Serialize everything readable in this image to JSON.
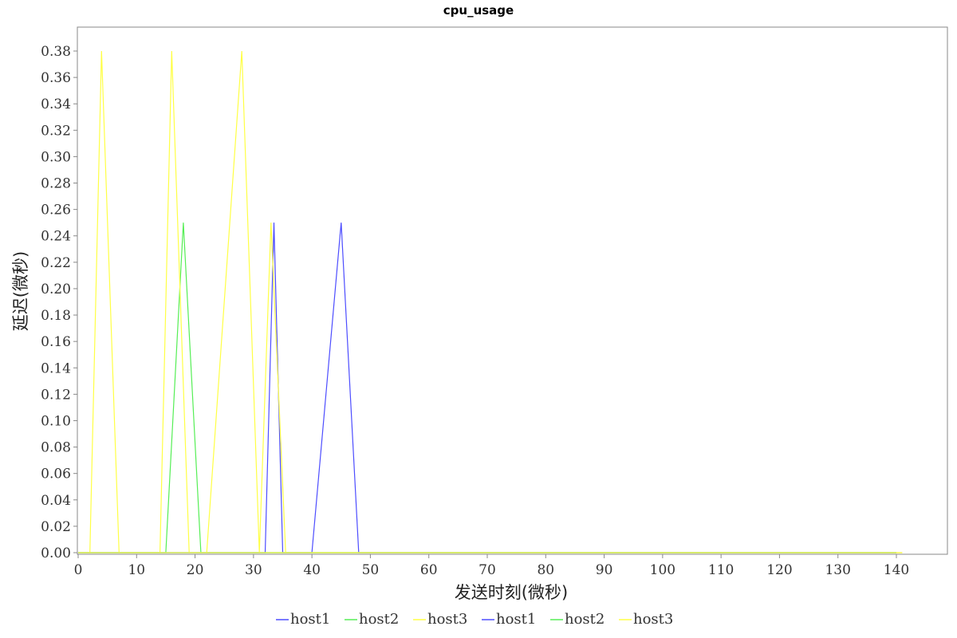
{
  "chart_data": {
    "type": "line",
    "title": "cpu_usage",
    "xlabel": "发送时刻(微秒)",
    "ylabel": "延迟(微秒)",
    "xlim": [
      0,
      148
    ],
    "ylim": [
      0,
      0.4
    ],
    "xticks": [
      0,
      10,
      20,
      30,
      40,
      50,
      60,
      70,
      80,
      90,
      100,
      110,
      120,
      130,
      140
    ],
    "yticks": [
      0.0,
      0.02,
      0.04,
      0.06,
      0.08,
      0.1,
      0.12,
      0.14,
      0.16,
      0.18,
      0.2,
      0.22,
      0.24,
      0.26,
      0.28,
      0.3,
      0.32,
      0.34,
      0.36,
      0.38
    ],
    "ytick_labels": [
      "0.00",
      "0.02",
      "0.04",
      "0.06",
      "0.08",
      "0.10",
      "0.12",
      "0.14",
      "0.16",
      "0.18",
      "0.20",
      "0.22",
      "0.24",
      "0.26",
      "0.28",
      "0.30",
      "0.32",
      "0.34",
      "0.36",
      "0.38"
    ],
    "grid": false,
    "legend_position": "bottom",
    "series": [
      {
        "name": "host1",
        "color": "#4d4dff",
        "x": [
          0,
          32,
          33.5,
          35,
          40,
          45,
          48,
          140
        ],
        "y": [
          0,
          0,
          0.25,
          0,
          0,
          0.25,
          0,
          0
        ]
      },
      {
        "name": "host2",
        "color": "#55ee55",
        "x": [
          0,
          15,
          18,
          21,
          140
        ],
        "y": [
          0,
          0,
          0.25,
          0,
          0
        ]
      },
      {
        "name": "host3",
        "color": "#ffff44",
        "x": [
          0,
          2,
          4,
          7,
          14,
          16,
          19,
          22,
          28,
          31,
          33,
          35.5,
          141
        ],
        "y": [
          0,
          0,
          0.38,
          0,
          0,
          0.38,
          0,
          0,
          0.38,
          0,
          0.25,
          0,
          0
        ]
      },
      {
        "name": "host1",
        "color": "#4d4dff",
        "x": [
          0,
          140
        ],
        "y": [
          0,
          0
        ]
      },
      {
        "name": "host2",
        "color": "#55ee55",
        "x": [
          0,
          140
        ],
        "y": [
          0,
          0
        ]
      },
      {
        "name": "host3",
        "color": "#ffff44",
        "x": [
          0,
          141
        ],
        "y": [
          0,
          0
        ]
      }
    ]
  }
}
